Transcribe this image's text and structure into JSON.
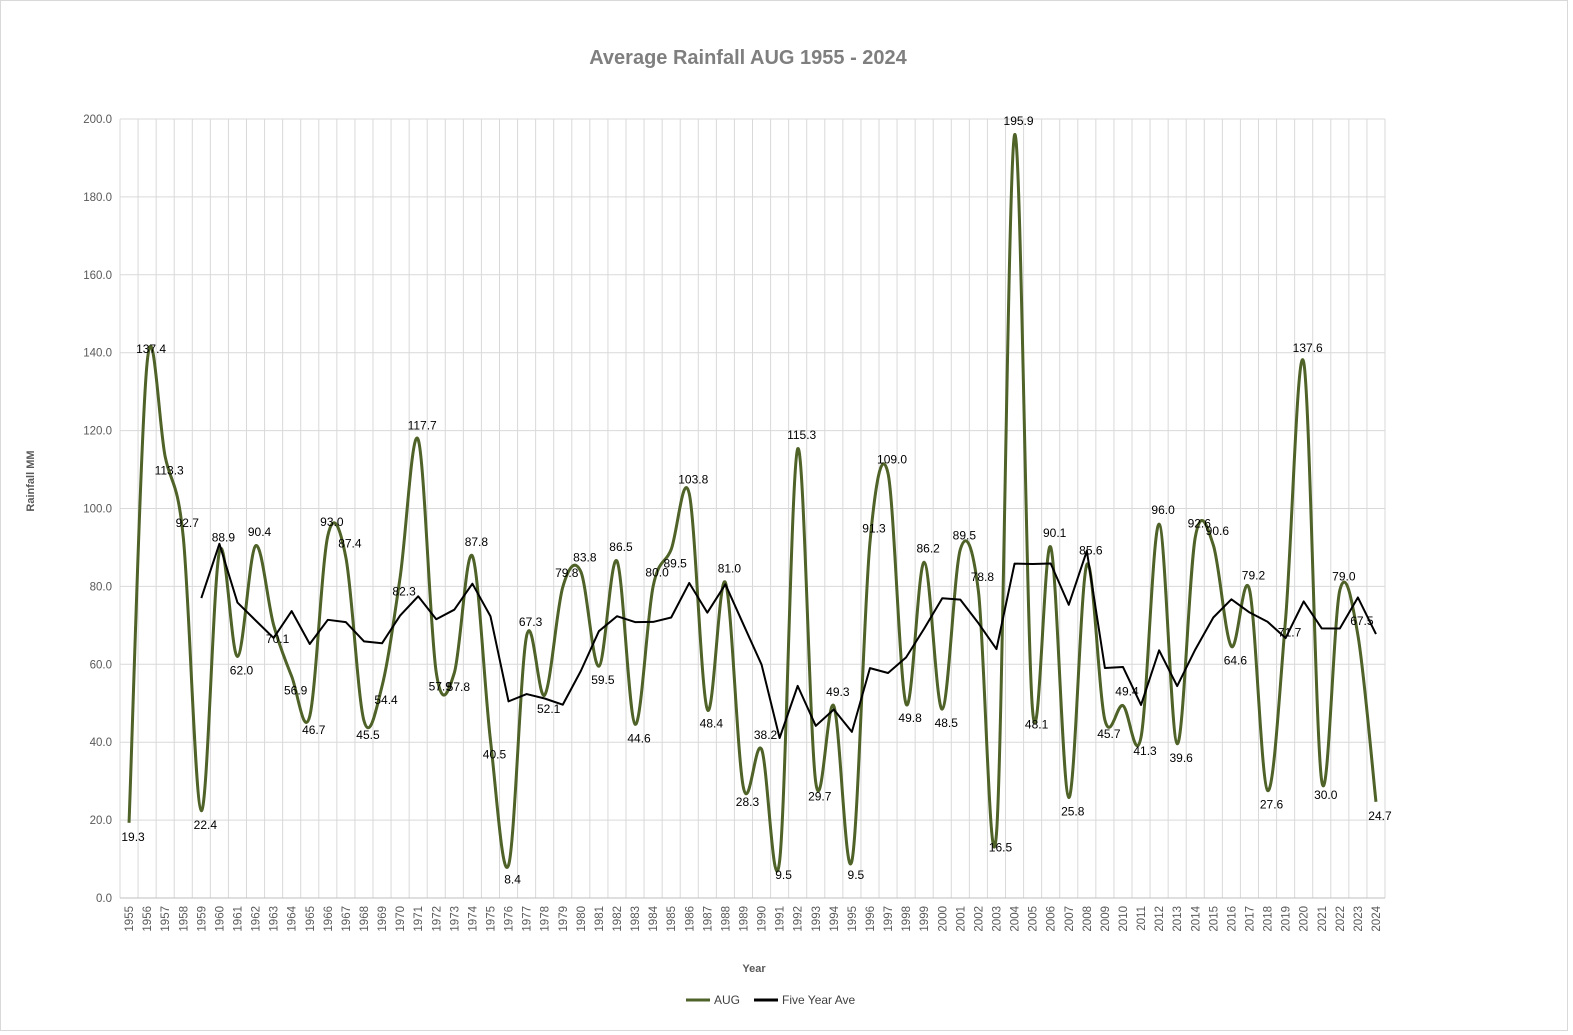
{
  "chart_data": {
    "type": "line",
    "title": "Average Rainfall AUG 1955 - 2024",
    "x_label": "Year",
    "y_label": "Rainfall MM",
    "categories": [
      "1955",
      "1956",
      "1957",
      "1958",
      "1959",
      "1960",
      "1961",
      "1962",
      "1963",
      "1964",
      "1965",
      "1966",
      "1967",
      "1968",
      "1969",
      "1970",
      "1971",
      "1972",
      "1973",
      "1974",
      "1975",
      "1976",
      "1977",
      "1978",
      "1979",
      "1980",
      "1981",
      "1982",
      "1983",
      "1984",
      "1985",
      "1986",
      "1987",
      "1988",
      "1989",
      "1990",
      "1991",
      "1992",
      "1993",
      "1994",
      "1995",
      "1996",
      "1997",
      "1998",
      "1999",
      "2000",
      "2001",
      "2002",
      "2003",
      "2004",
      "2005",
      "2006",
      "2007",
      "2008",
      "2009",
      "2010",
      "2011",
      "2012",
      "2013",
      "2014",
      "2015",
      "2016",
      "2017",
      "2018",
      "2019",
      "2020",
      "2021",
      "2022",
      "2023",
      "2024"
    ],
    "ylim": [
      0,
      200
    ],
    "yticks": [
      {
        "value": 0,
        "label": "0.0"
      },
      {
        "value": 20,
        "label": "20.0"
      },
      {
        "value": 40,
        "label": "40.0"
      },
      {
        "value": 60,
        "label": "60.0"
      },
      {
        "value": 80,
        "label": "80.0"
      },
      {
        "value": 100,
        "label": "100.0"
      },
      {
        "value": 120,
        "label": "120.0"
      },
      {
        "value": 140,
        "label": "140.0"
      },
      {
        "value": 160,
        "label": "160.0"
      },
      {
        "value": 180,
        "label": "180.0"
      },
      {
        "value": 200,
        "label": "200.0"
      }
    ],
    "grid": true,
    "legend": "bottom",
    "series": [
      {
        "name": "AUG",
        "color": "#4f6228",
        "smooth": true,
        "values": [
          19.3,
          137.4,
          113.3,
          92.7,
          22.4,
          88.9,
          62.0,
          90.4,
          70.1,
          56.9,
          46.7,
          93.0,
          87.4,
          45.5,
          54.4,
          82.3,
          117.7,
          57.9,
          57.8,
          87.8,
          40.5,
          8.4,
          67.3,
          52.1,
          79.8,
          83.8,
          59.5,
          86.5,
          44.6,
          80.0,
          89.5,
          103.8,
          48.4,
          81.0,
          28.3,
          38.2,
          9.5,
          115.3,
          29.7,
          49.3,
          9.5,
          91.3,
          109.0,
          49.8,
          86.2,
          48.5,
          89.5,
          78.8,
          16.5,
          195.9,
          48.1,
          90.1,
          25.8,
          85.6,
          45.7,
          49.4,
          41.3,
          96.0,
          39.6,
          92.6,
          90.6,
          64.6,
          79.2,
          27.6,
          71.7,
          137.6,
          30.0,
          79.0,
          67.5,
          24.7
        ],
        "value_labels": [
          "19.3",
          "137.4",
          "113.3",
          "92.7",
          "22.4",
          "88.9",
          "62.0",
          "90.4",
          "70.1",
          "56.9",
          "46.7",
          "93.0",
          "87.4",
          "45.5",
          "54.4",
          "82.3",
          "117.7",
          "57.9",
          "57.8",
          "87.8",
          "40.5",
          "8.4",
          "67.3",
          "52.1",
          "79.8",
          "83.8",
          "59.5",
          "86.5",
          "44.6",
          "80.0",
          "89.5",
          "103.8",
          "48.4",
          "81.0",
          "28.3",
          "38.2",
          "9.5",
          "115.3",
          "29.7",
          "49.3",
          "9.5",
          "91.3",
          "109.0",
          "49.8",
          "86.2",
          "48.5",
          "89.5",
          "78.8",
          "16.5",
          "195.9",
          "48.1",
          "90.1",
          "25.8",
          "85.6",
          "45.7",
          "49.4",
          "41.3",
          "96.0",
          "39.6",
          "92.6",
          "90.6",
          "64.6",
          "79.2",
          "27.6",
          "71.7",
          "137.6",
          "30.0",
          "79.0",
          "67.5",
          "24.7"
        ]
      },
      {
        "name": "Five Year Ave",
        "color": "#000000",
        "smooth": false,
        "values": [
          null,
          null,
          null,
          null,
          77.02,
          90.94,
          75.86,
          71.28,
          66.76,
          73.66,
          65.22,
          71.42,
          70.82,
          65.9,
          65.4,
          72.52,
          77.46,
          71.56,
          74.02,
          80.7,
          72.34,
          50.48,
          52.36,
          51.22,
          49.62,
          58.28,
          68.5,
          72.34,
          70.84,
          70.88,
          72.02,
          80.88,
          73.26,
          80.54,
          70.2,
          59.94,
          41.08,
          54.46,
          44.2,
          48.4,
          42.66,
          59.02,
          57.76,
          61.78,
          69.16,
          76.96,
          76.6,
          70.56,
          63.9,
          85.84,
          85.76,
          85.88,
          75.28,
          89.1,
          59.06,
          59.32,
          49.56,
          63.6,
          54.4,
          63.78,
          72.02,
          76.68,
          73.32,
          70.92,
          66.74,
          76.14,
          69.22,
          69.18,
          77.16,
          67.76
        ]
      }
    ]
  }
}
